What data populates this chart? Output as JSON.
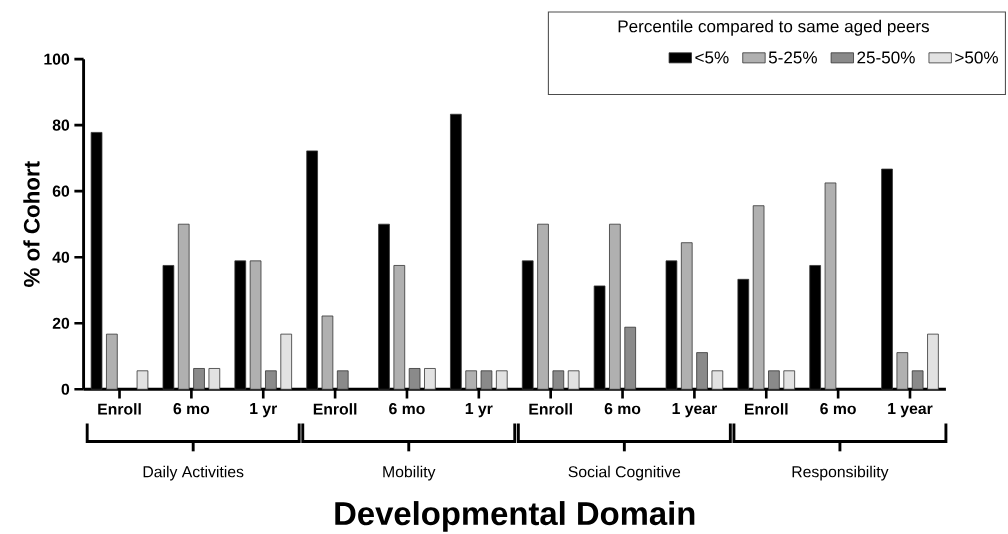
{
  "chart_data": {
    "type": "bar",
    "xlabel": "Developmental Domain",
    "ylabel": "% of Cohort",
    "legend_title": "Percentile compared to same aged peers",
    "categories": [
      "Enroll",
      "6 mo",
      "1 yr",
      "Enroll",
      "6 mo",
      "1 yr",
      "Enroll",
      "6 mo",
      "1 year",
      "Enroll",
      "6 mo",
      "1 year"
    ],
    "series": [
      {
        "name": "<5%",
        "color": "#000000",
        "values": [
          77.8,
          37.5,
          38.9,
          72.2,
          50,
          83.3,
          38.9,
          31.3,
          38.9,
          33.3,
          37.5,
          66.7
        ]
      },
      {
        "name": "5-25%",
        "color": "#b0b0b0",
        "values": [
          16.7,
          50,
          38.9,
          22.2,
          37.5,
          5.6,
          50,
          50,
          44.4,
          55.6,
          62.5,
          11.1
        ]
      },
      {
        "name": "25-50%",
        "color": "#8a8a8a",
        "values": [
          null,
          6.3,
          5.6,
          5.6,
          6.3,
          5.6,
          5.6,
          18.8,
          11.1,
          5.6,
          null,
          5.6
        ]
      },
      {
        "name": ">50%",
        "color": "#e2e2e2",
        "values": [
          5.6,
          6.3,
          16.7,
          null,
          6.3,
          5.6,
          5.6,
          null,
          5.6,
          5.6,
          null,
          16.7
        ]
      }
    ],
    "annotations": [
      "Daily Activities",
      "Mobility",
      "Social Cognitive",
      "Responsibility"
    ],
    "ylim": [
      0,
      100
    ],
    "yticks": [
      0,
      20,
      40,
      60,
      80,
      100
    ],
    "legend": "top right"
  }
}
